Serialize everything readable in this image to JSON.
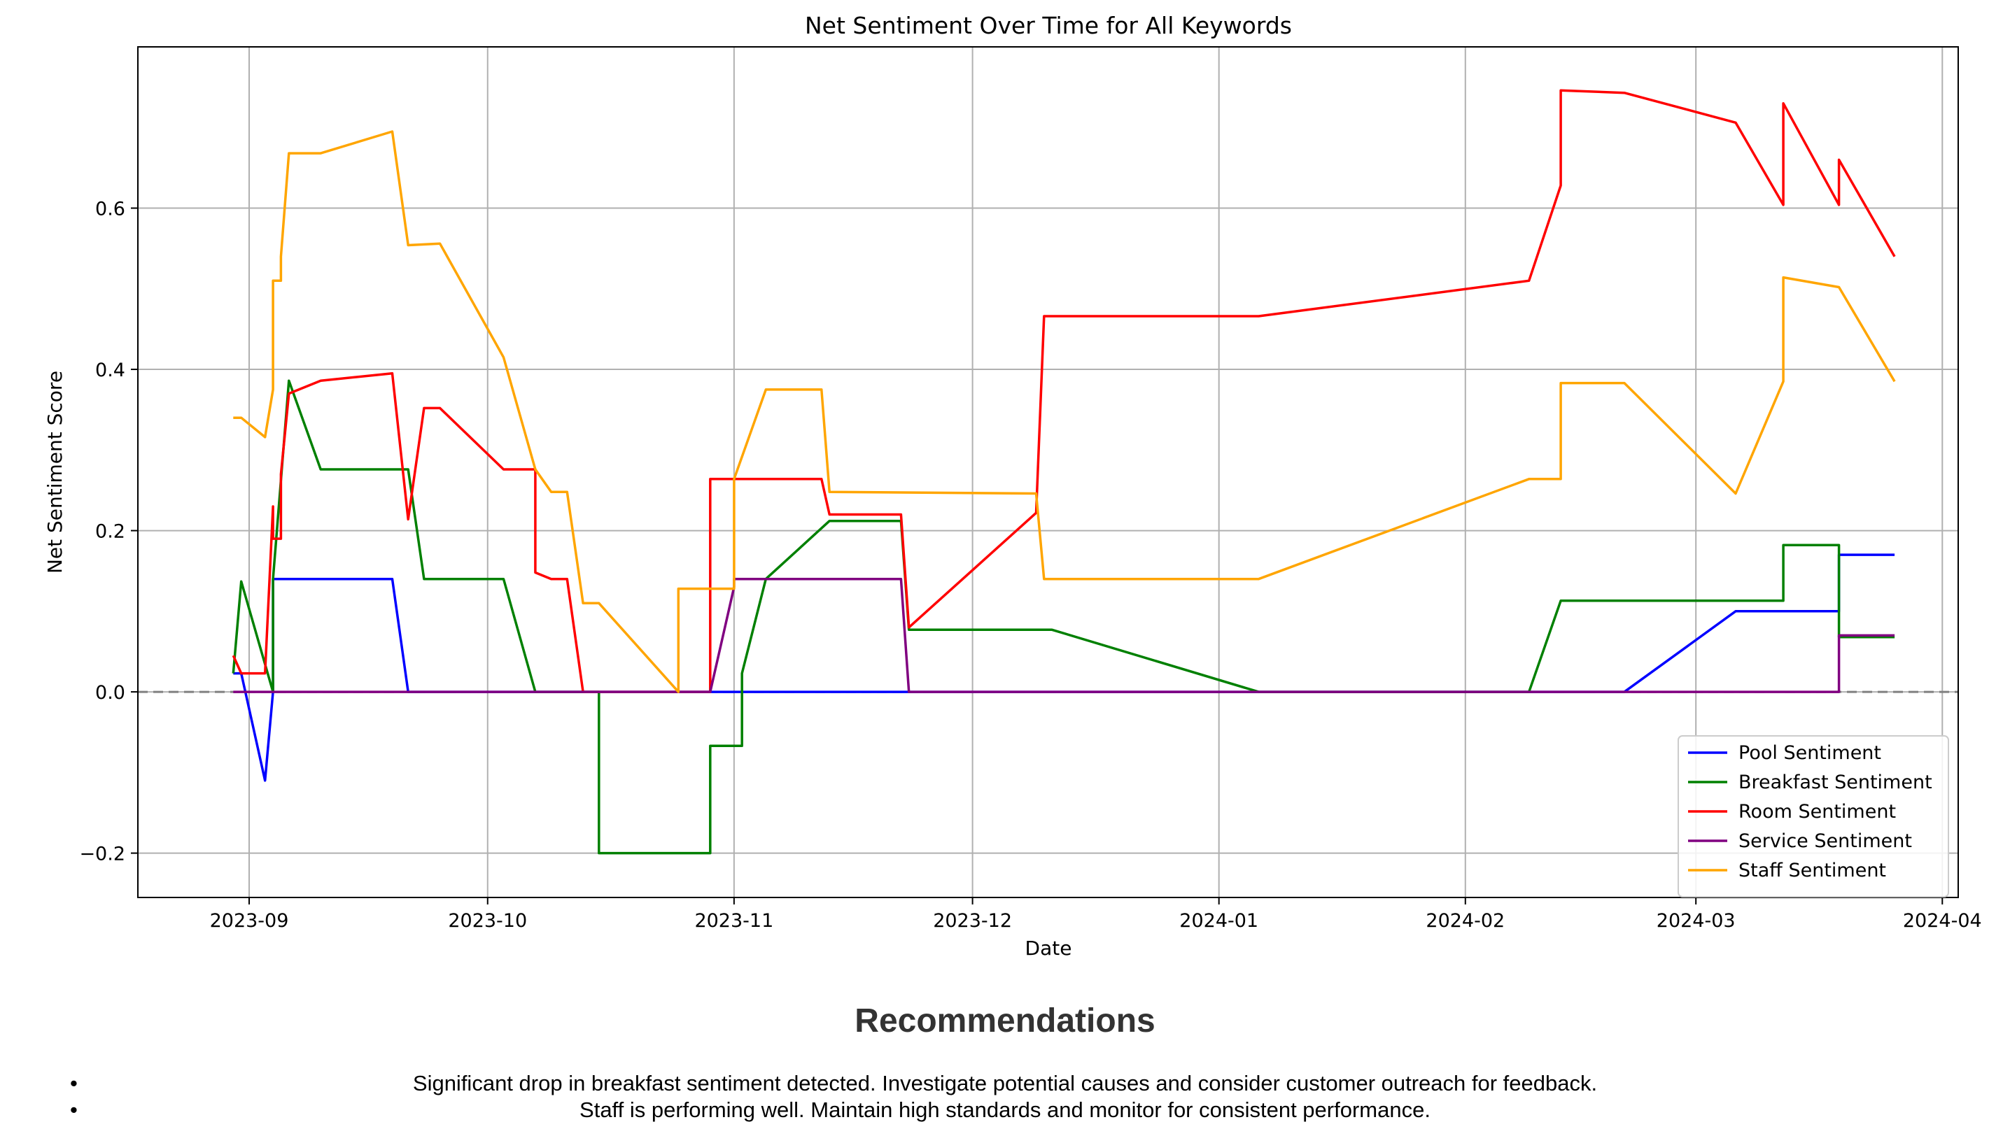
{
  "chart_data": {
    "type": "line",
    "title": "Net Sentiment Over Time for All Keywords",
    "xlabel": "Date",
    "ylabel": "Net Sentiment Score",
    "xlim": [
      "2023-08-18",
      "2024-04-03"
    ],
    "ylim": [
      -0.255,
      0.8
    ],
    "xticks": [
      "2023-09",
      "2023-10",
      "2023-11",
      "2023-12",
      "2024-01",
      "2024-02",
      "2024-03",
      "2024-04"
    ],
    "yticks": [
      -0.2,
      0.0,
      0.2,
      0.4,
      0.6
    ],
    "ytick_labels": [
      "−0.2",
      "0.0",
      "0.2",
      "0.4",
      "0.6"
    ],
    "grid": true,
    "reference_line": {
      "y": 0.0,
      "style": "dashed",
      "color": "#808080"
    },
    "legend_position": "lower right",
    "series": [
      {
        "name": "Pool Sentiment",
        "color": "#0000ff",
        "points": [
          [
            "2023-08-30",
            0.023
          ],
          [
            "2023-08-31",
            0.023
          ],
          [
            "2023-09-03",
            -0.11
          ],
          [
            "2023-09-04",
            0.0
          ],
          [
            "2023-09-04",
            0.14
          ],
          [
            "2023-09-19",
            0.14
          ],
          [
            "2023-09-21",
            0.0
          ],
          [
            "2023-10-06",
            0.0
          ],
          [
            "2023-11-01",
            0.0
          ],
          [
            "2024-02-21",
            0.0
          ],
          [
            "2024-03-06",
            0.1
          ],
          [
            "2024-03-19",
            0.1
          ],
          [
            "2024-03-19",
            0.17
          ],
          [
            "2024-03-26",
            0.17
          ]
        ]
      },
      {
        "name": "Breakfast Sentiment",
        "color": "#008000",
        "points": [
          [
            "2023-08-30",
            0.023
          ],
          [
            "2023-08-31",
            0.137
          ],
          [
            "2023-09-04",
            0.0
          ],
          [
            "2023-09-04",
            0.14
          ],
          [
            "2023-09-06",
            0.386
          ],
          [
            "2023-09-10",
            0.276
          ],
          [
            "2023-09-21",
            0.276
          ],
          [
            "2023-09-23",
            0.14
          ],
          [
            "2023-10-03",
            0.14
          ],
          [
            "2023-10-07",
            0.0
          ],
          [
            "2023-10-15",
            0.0
          ],
          [
            "2023-10-15",
            -0.2
          ],
          [
            "2023-10-29",
            -0.2
          ],
          [
            "2023-10-29",
            -0.067
          ],
          [
            "2023-11-02",
            -0.067
          ],
          [
            "2023-11-02",
            0.023
          ],
          [
            "2023-11-05",
            0.14
          ],
          [
            "2023-11-13",
            0.212
          ],
          [
            "2023-11-22",
            0.212
          ],
          [
            "2023-11-23",
            0.077
          ],
          [
            "2023-12-11",
            0.077
          ],
          [
            "2024-01-06",
            0.0
          ],
          [
            "2024-02-09",
            0.0
          ],
          [
            "2024-02-13",
            0.113
          ],
          [
            "2024-03-12",
            0.113
          ],
          [
            "2024-03-12",
            0.182
          ],
          [
            "2024-03-19",
            0.182
          ],
          [
            "2024-03-19",
            0.068
          ],
          [
            "2024-03-26",
            0.068
          ]
        ]
      },
      {
        "name": "Room Sentiment",
        "color": "#ff0000",
        "points": [
          [
            "2023-08-30",
            0.045
          ],
          [
            "2023-08-31",
            0.023
          ],
          [
            "2023-09-03",
            0.023
          ],
          [
            "2023-09-04",
            0.23
          ],
          [
            "2023-09-04",
            0.19
          ],
          [
            "2023-09-05",
            0.19
          ],
          [
            "2023-09-05",
            0.27
          ],
          [
            "2023-09-06",
            0.37
          ],
          [
            "2023-09-10",
            0.386
          ],
          [
            "2023-09-19",
            0.395
          ],
          [
            "2023-09-21",
            0.214
          ],
          [
            "2023-09-23",
            0.352
          ],
          [
            "2023-09-25",
            0.352
          ],
          [
            "2023-10-03",
            0.276
          ],
          [
            "2023-10-07",
            0.276
          ],
          [
            "2023-10-07",
            0.148
          ],
          [
            "2023-10-09",
            0.14
          ],
          [
            "2023-10-11",
            0.14
          ],
          [
            "2023-10-13",
            0.0
          ],
          [
            "2023-10-29",
            0.0
          ],
          [
            "2023-10-29",
            0.264
          ],
          [
            "2023-11-12",
            0.264
          ],
          [
            "2023-11-13",
            0.22
          ],
          [
            "2023-11-22",
            0.22
          ],
          [
            "2023-11-23",
            0.08
          ],
          [
            "2023-12-09",
            0.222
          ],
          [
            "2023-12-10",
            0.466
          ],
          [
            "2024-01-06",
            0.466
          ],
          [
            "2024-02-09",
            0.51
          ],
          [
            "2024-02-13",
            0.628
          ],
          [
            "2024-02-13",
            0.746
          ],
          [
            "2024-02-21",
            0.743
          ],
          [
            "2024-03-06",
            0.706
          ],
          [
            "2024-03-12",
            0.604
          ],
          [
            "2024-03-12",
            0.73
          ],
          [
            "2024-03-19",
            0.604
          ],
          [
            "2024-03-19",
            0.66
          ],
          [
            "2024-03-26",
            0.54
          ]
        ]
      },
      {
        "name": "Service Sentiment",
        "color": "#800080",
        "points": [
          [
            "2023-08-30",
            0.0
          ],
          [
            "2023-10-29",
            0.0
          ],
          [
            "2023-11-01",
            0.13
          ],
          [
            "2023-11-01",
            0.14
          ],
          [
            "2023-11-22",
            0.14
          ],
          [
            "2023-11-23",
            0.0
          ],
          [
            "2024-03-19",
            0.0
          ],
          [
            "2024-03-19",
            0.07
          ],
          [
            "2024-03-26",
            0.07
          ]
        ]
      },
      {
        "name": "Staff Sentiment",
        "color": "#ffa500",
        "points": [
          [
            "2023-08-30",
            0.34
          ],
          [
            "2023-08-31",
            0.34
          ],
          [
            "2023-09-03",
            0.316
          ],
          [
            "2023-09-04",
            0.375
          ],
          [
            "2023-09-04",
            0.51
          ],
          [
            "2023-09-05",
            0.51
          ],
          [
            "2023-09-05",
            0.54
          ],
          [
            "2023-09-06",
            0.668
          ],
          [
            "2023-09-10",
            0.668
          ],
          [
            "2023-09-19",
            0.695
          ],
          [
            "2023-09-21",
            0.554
          ],
          [
            "2023-09-25",
            0.556
          ],
          [
            "2023-10-03",
            0.415
          ],
          [
            "2023-10-07",
            0.276
          ],
          [
            "2023-10-09",
            0.248
          ],
          [
            "2023-10-11",
            0.248
          ],
          [
            "2023-10-13",
            0.11
          ],
          [
            "2023-10-15",
            0.11
          ],
          [
            "2023-10-25",
            0.0
          ],
          [
            "2023-10-25",
            0.128
          ],
          [
            "2023-11-01",
            0.128
          ],
          [
            "2023-11-01",
            0.264
          ],
          [
            "2023-11-05",
            0.375
          ],
          [
            "2023-11-12",
            0.375
          ],
          [
            "2023-11-13",
            0.248
          ],
          [
            "2023-12-09",
            0.246
          ],
          [
            "2023-12-10",
            0.14
          ],
          [
            "2024-01-06",
            0.14
          ],
          [
            "2024-02-09",
            0.264
          ],
          [
            "2024-02-13",
            0.264
          ],
          [
            "2024-02-13",
            0.383
          ],
          [
            "2024-02-21",
            0.383
          ],
          [
            "2024-03-06",
            0.246
          ],
          [
            "2024-03-12",
            0.385
          ],
          [
            "2024-03-12",
            0.514
          ],
          [
            "2024-03-19",
            0.502
          ],
          [
            "2024-03-26",
            0.385
          ]
        ]
      }
    ]
  },
  "recommendations": {
    "title": "Recommendations",
    "bullet": "•",
    "items": [
      "Significant drop in breakfast sentiment detected. Investigate potential causes and consider customer outreach for feedback.",
      "Staff is performing well. Maintain high standards and monitor for consistent performance."
    ]
  }
}
